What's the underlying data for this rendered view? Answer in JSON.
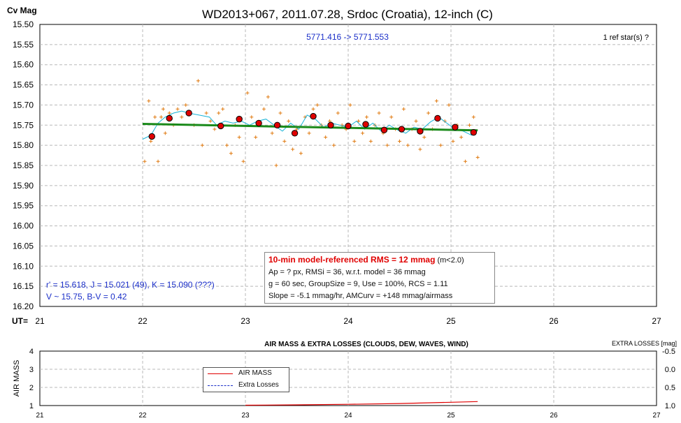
{
  "chart_data": [
    {
      "type": "scatter",
      "title": "WD2013+067, 2011.07.28, Srdoc (Croatia), 12-inch (C)",
      "ylabel": "Cv Mag",
      "xlabel": "UT=",
      "subtitle": "5771.416 -> 5771.553",
      "corner_note": "1 ref star(s) ?",
      "ylim": [
        15.5,
        16.2
      ],
      "y_inverted": true,
      "xlim": [
        21,
        27
      ],
      "x_ticks": [
        "21",
        "22",
        "23",
        "24",
        "25",
        "26",
        "27"
      ],
      "y_ticks": [
        "15.50",
        "15.55",
        "15.60",
        "15.65",
        "15.70",
        "15.75",
        "15.80",
        "15.85",
        "15.90",
        "15.95",
        "16.00",
        "16.05",
        "16.10",
        "16.15",
        "16.20"
      ],
      "grid": true,
      "colors": {
        "raw": "#e07a10",
        "group": "#e00000",
        "running": "#18b4d8",
        "model": "#1a8a1a",
        "text_blue": "#1a2ec8"
      },
      "series": [
        {
          "name": "",
          "kind": "raw-points",
          "x": [
            22.02,
            22.06,
            22.08,
            22.12,
            22.15,
            22.18,
            22.2,
            22.22,
            22.26,
            22.3,
            22.34,
            22.38,
            22.42,
            22.46,
            22.5,
            22.54,
            22.58,
            22.62,
            22.66,
            22.7,
            22.74,
            22.78,
            22.82,
            22.86,
            22.9,
            22.94,
            22.98,
            23.02,
            23.06,
            23.1,
            23.14,
            23.18,
            23.22,
            23.26,
            23.3,
            23.34,
            23.38,
            23.42,
            23.46,
            23.5,
            23.54,
            23.58,
            23.62,
            23.66,
            23.7,
            23.74,
            23.78,
            23.82,
            23.86,
            23.9,
            23.94,
            23.98,
            24.02,
            24.06,
            24.1,
            24.14,
            24.18,
            24.22,
            24.26,
            24.3,
            24.34,
            24.38,
            24.42,
            24.46,
            24.5,
            24.54,
            24.58,
            24.62,
            24.66,
            24.7,
            24.74,
            24.78,
            24.82,
            24.86,
            24.9,
            24.94,
            24.98,
            25.02,
            25.06,
            25.1,
            25.14,
            25.18,
            25.22,
            25.26
          ],
          "y": [
            15.84,
            15.69,
            15.79,
            15.73,
            15.84,
            15.73,
            15.71,
            15.77,
            15.72,
            15.75,
            15.71,
            15.73,
            15.7,
            15.72,
            15.75,
            15.64,
            15.8,
            15.72,
            15.74,
            15.76,
            15.72,
            15.71,
            15.8,
            15.82,
            15.75,
            15.78,
            15.84,
            15.67,
            15.73,
            15.78,
            15.75,
            15.71,
            15.68,
            15.77,
            15.85,
            15.72,
            15.79,
            15.74,
            15.81,
            15.76,
            15.82,
            15.73,
            15.77,
            15.71,
            15.7,
            15.75,
            15.78,
            15.74,
            15.8,
            15.72,
            15.75,
            15.76,
            15.7,
            15.79,
            15.74,
            15.77,
            15.73,
            15.79,
            15.75,
            15.72,
            15.77,
            15.8,
            15.73,
            15.76,
            15.79,
            15.71,
            15.8,
            15.76,
            15.74,
            15.81,
            15.78,
            15.72,
            15.76,
            15.69,
            15.8,
            15.74,
            15.7,
            15.79,
            15.75,
            15.78,
            15.84,
            15.75,
            15.73,
            15.83
          ]
        },
        {
          "name": "",
          "kind": "group-means",
          "x": [
            22.09,
            22.26,
            22.45,
            22.76,
            22.94,
            23.13,
            23.31,
            23.48,
            23.66,
            23.83,
            24.0,
            24.17,
            24.35,
            24.52,
            24.7,
            24.87,
            25.04,
            25.22
          ],
          "y": [
            15.778,
            15.733,
            15.72,
            15.752,
            15.735,
            15.745,
            15.75,
            15.77,
            15.728,
            15.75,
            15.752,
            15.748,
            15.762,
            15.76,
            15.765,
            15.733,
            15.755,
            15.768
          ]
        },
        {
          "name": "",
          "kind": "running-average",
          "x": [
            22.0,
            22.08,
            22.15,
            22.22,
            22.3,
            22.38,
            22.45,
            22.55,
            22.65,
            22.72,
            22.8,
            22.88,
            22.96,
            23.04,
            23.12,
            23.2,
            23.28,
            23.36,
            23.44,
            23.52,
            23.6,
            23.68,
            23.76,
            23.84,
            23.92,
            24.0,
            24.08,
            24.16,
            24.24,
            24.32,
            24.4,
            24.48,
            24.56,
            24.64,
            24.72,
            24.8,
            24.88,
            24.96,
            25.04,
            25.12,
            25.2,
            25.26
          ],
          "y": [
            15.785,
            15.775,
            15.745,
            15.73,
            15.72,
            15.715,
            15.72,
            15.725,
            15.73,
            15.75,
            15.74,
            15.745,
            15.74,
            15.75,
            15.74,
            15.735,
            15.75,
            15.765,
            15.745,
            15.76,
            15.725,
            15.735,
            15.755,
            15.745,
            15.75,
            15.755,
            15.74,
            15.76,
            15.745,
            15.765,
            15.75,
            15.762,
            15.77,
            15.755,
            15.76,
            15.742,
            15.73,
            15.745,
            15.76,
            15.765,
            15.775,
            15.762
          ]
        },
        {
          "name": "",
          "kind": "model-fit",
          "x": [
            22.0,
            25.26
          ],
          "y": [
            15.747,
            15.763
          ]
        }
      ],
      "annotations": {
        "bottom_left_line1": "r' = 15.618, J = 15.021 (49), K = 15.090 (???)",
        "bottom_left_line2": "V ~ 15.75, B-V = 0.42"
      },
      "info_box": {
        "header": "10-min model-referenced RMS = 12 mmag",
        "header_note": "(m<2.0)",
        "line2": "Ap = ? px, RMSi = 36, w.r.t. model = 36 mmag",
        "line3": "g = 60 sec, GroupSize = 9, Use = 100%, RCS = 1.11",
        "line4": "Slope = -5.1 mmag/hr, AMCurv = +148 mmag/airmass"
      }
    },
    {
      "type": "line",
      "title": "AIR MASS & EXTRA LOSSES (CLOUDS, DEW, WAVES, WIND)",
      "ylabel": "AIR MASS",
      "y2label": "EXTRA LOSSES [mag]",
      "ylim": [
        1,
        4
      ],
      "y_ticks": [
        "1",
        "2",
        "3",
        "4"
      ],
      "y2lim": [
        -0.5,
        1.0
      ],
      "y2_ticks": [
        "-0.5",
        "0.0",
        "0.5",
        "1.0"
      ],
      "xlim": [
        21,
        27
      ],
      "x_ticks": [
        "21",
        "22",
        "23",
        "24",
        "25",
        "26",
        "27"
      ],
      "grid": true,
      "legend": {
        "position": "inside-left",
        "items": [
          "AIR MASS",
          "Extra Losses"
        ]
      },
      "colors": {
        "airmass": "#e00000",
        "losses": "#1a2ec8"
      },
      "series": [
        {
          "name": "AIR MASS",
          "x": [
            23.0,
            23.5,
            24.0,
            24.5,
            25.0,
            25.26
          ],
          "y": [
            1.02,
            1.04,
            1.07,
            1.11,
            1.18,
            1.22
          ]
        },
        {
          "name": "Extra Losses",
          "x": [],
          "y": []
        }
      ]
    }
  ]
}
